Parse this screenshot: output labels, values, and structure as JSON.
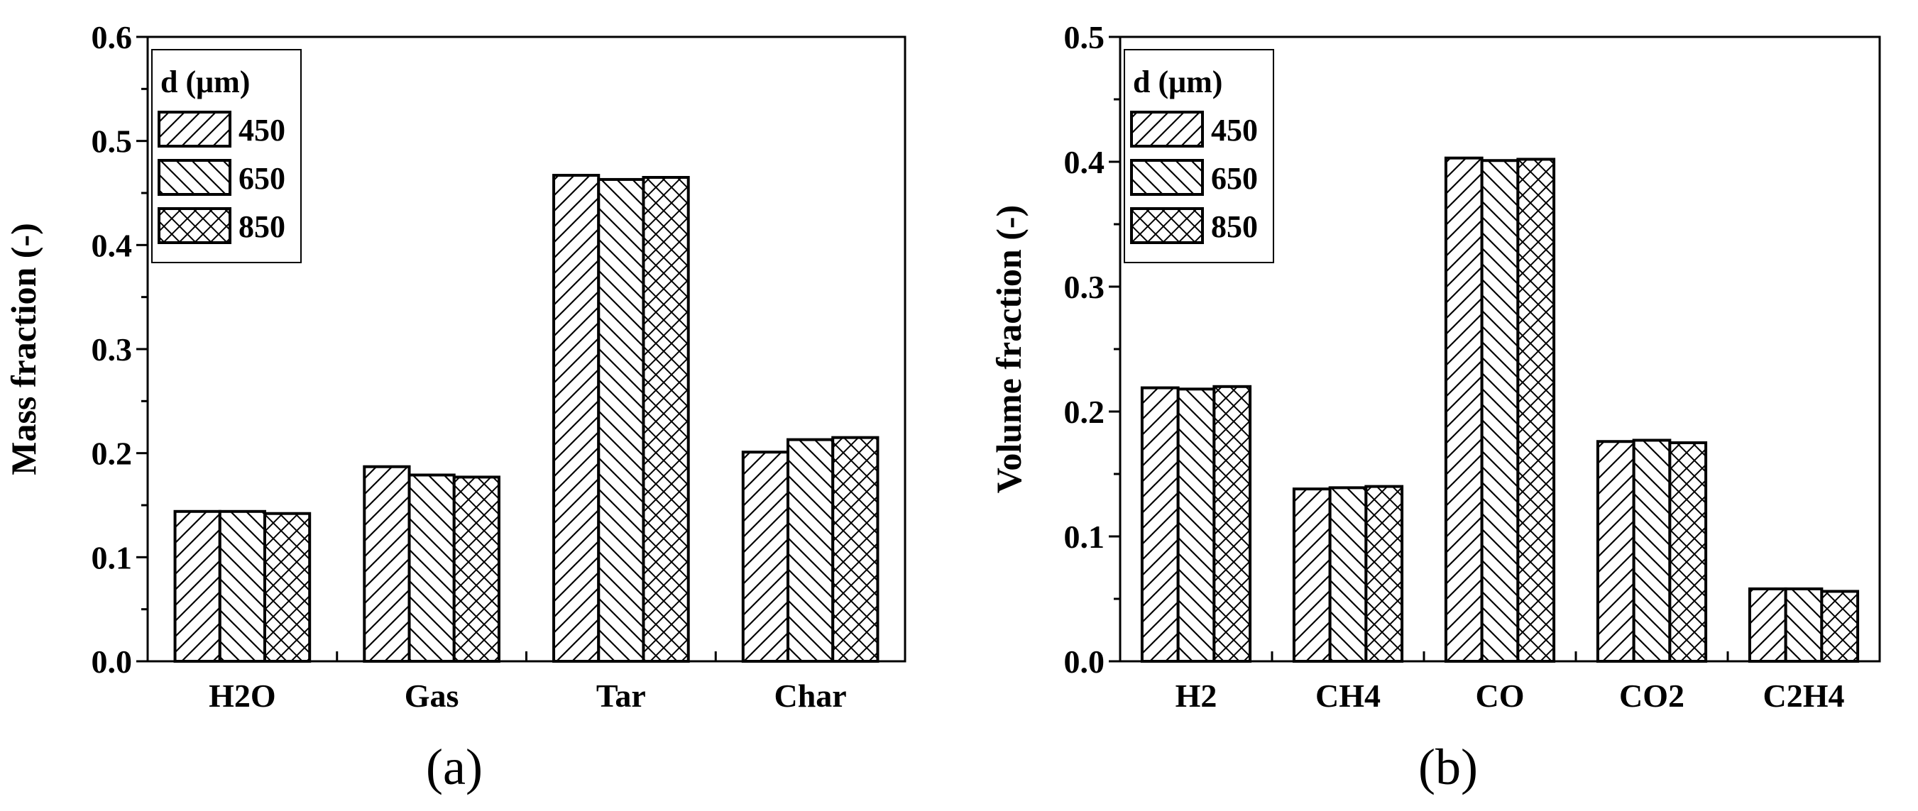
{
  "chart_data": [
    {
      "type": "bar",
      "panel_label": "(a)",
      "ylabel": "Mass fraction (-)",
      "xlabel": "",
      "ylim": [
        0,
        0.6
      ],
      "yticks": [
        "0.0",
        "0.1",
        "0.2",
        "0.3",
        "0.4",
        "0.5",
        "0.6"
      ],
      "categories": [
        "H2O",
        "Gas",
        "Tar",
        "Char"
      ],
      "legend": {
        "title": "d (μm)",
        "placement": "top-left"
      },
      "series": [
        {
          "name": "450",
          "pattern": "hatch-forward",
          "values": [
            0.144,
            0.187,
            0.467,
            0.201
          ]
        },
        {
          "name": "650",
          "pattern": "hatch-back",
          "values": [
            0.144,
            0.179,
            0.463,
            0.213
          ]
        },
        {
          "name": "850",
          "pattern": "crosshatch",
          "values": [
            0.142,
            0.177,
            0.465,
            0.215
          ]
        }
      ]
    },
    {
      "type": "bar",
      "panel_label": "(b)",
      "ylabel": "Volume fraction (-)",
      "xlabel": "",
      "ylim": [
        0,
        0.5
      ],
      "yticks": [
        "0.0",
        "0.1",
        "0.2",
        "0.3",
        "0.4",
        "0.5"
      ],
      "categories": [
        "H2",
        "CH4",
        "CO",
        "CO2",
        "C2H4"
      ],
      "legend": {
        "title": "d (μm)",
        "placement": "top-left"
      },
      "series": [
        {
          "name": "450",
          "pattern": "hatch-forward",
          "values": [
            0.219,
            0.138,
            0.403,
            0.176,
            0.058
          ]
        },
        {
          "name": "650",
          "pattern": "hatch-back",
          "values": [
            0.218,
            0.139,
            0.401,
            0.177,
            0.058
          ]
        },
        {
          "name": "850",
          "pattern": "crosshatch",
          "values": [
            0.22,
            0.14,
            0.402,
            0.175,
            0.056
          ]
        }
      ]
    }
  ]
}
